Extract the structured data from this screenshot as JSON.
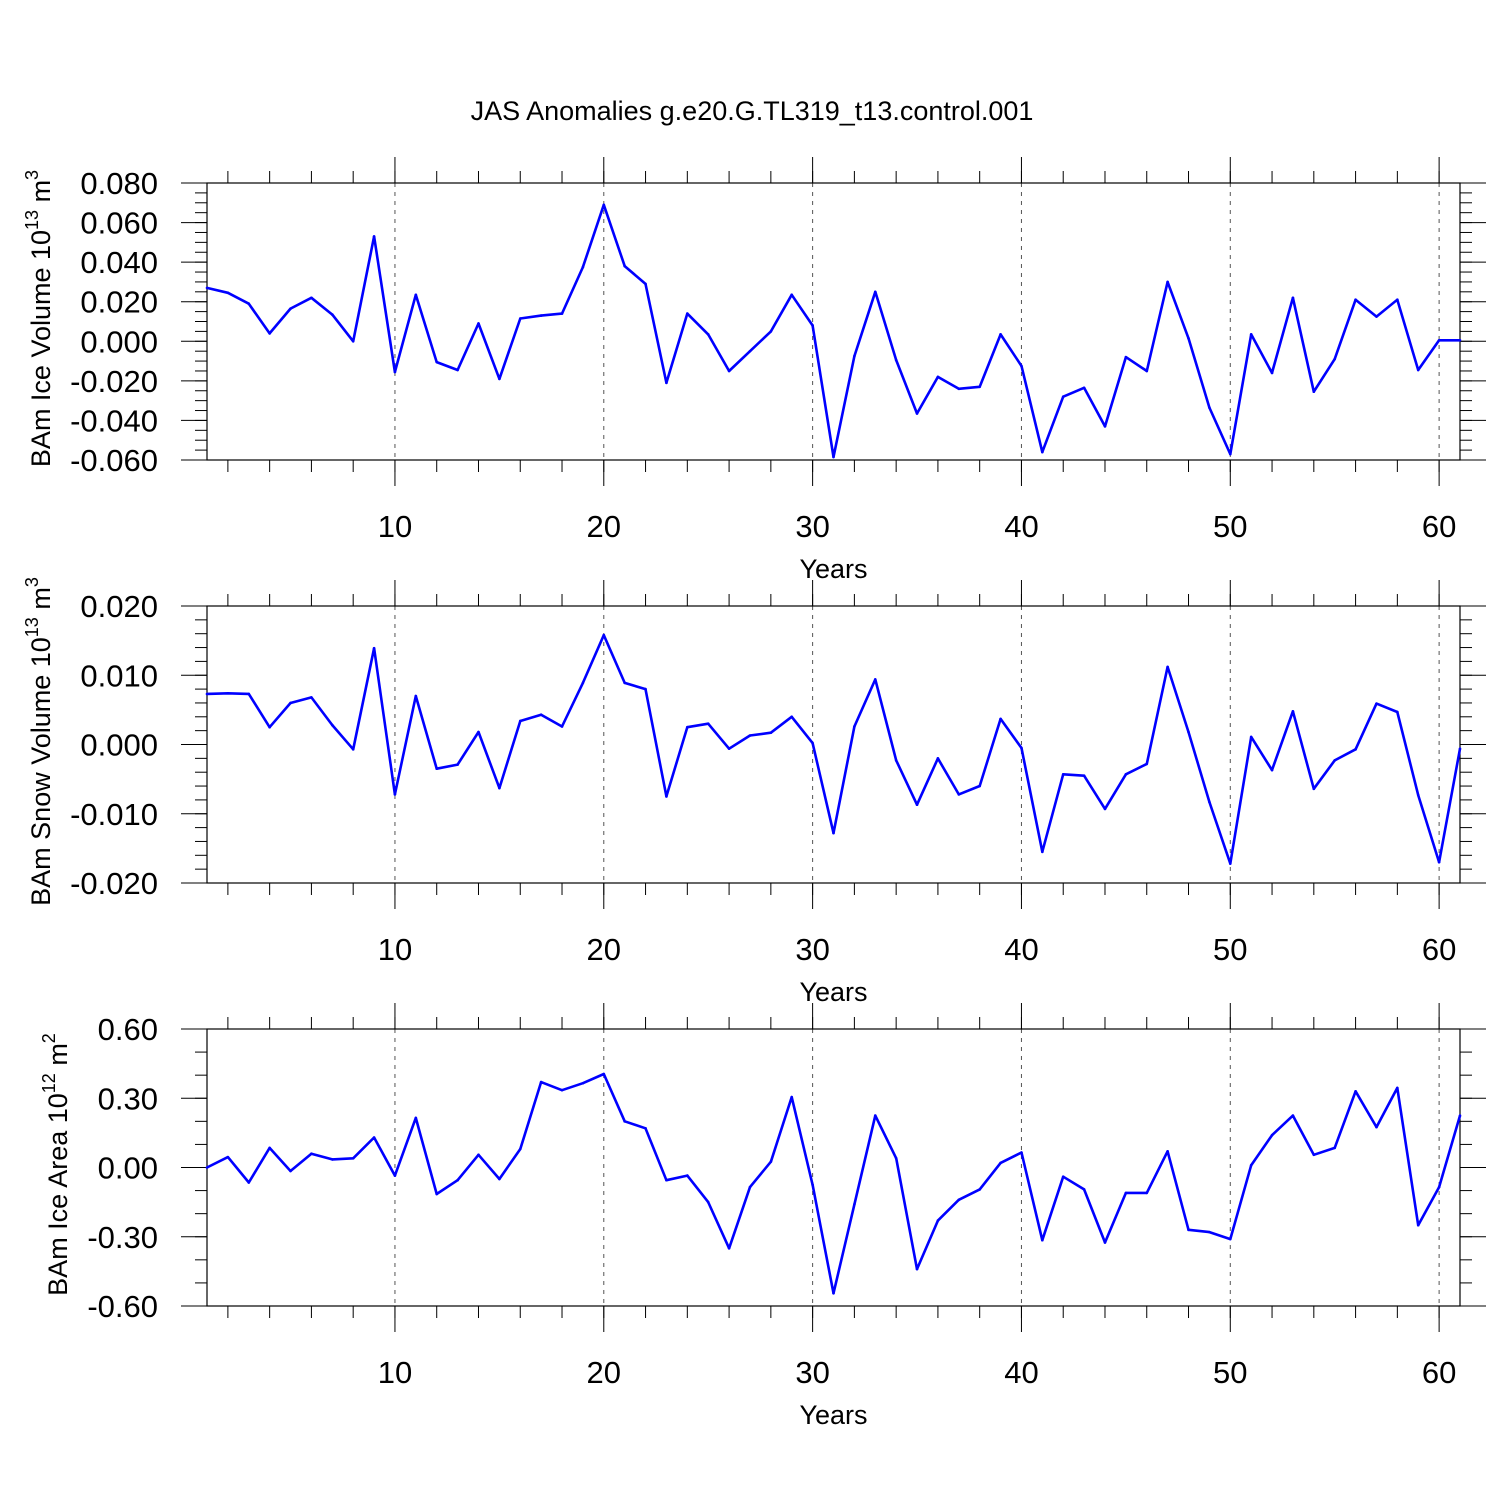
{
  "title": "JAS Anomalies g.e20.G.TL319_t13.control.001",
  "line_color": "#0000ff",
  "chart_data": [
    {
      "type": "line",
      "ylabel": "BAm Ice Volume 10",
      "ylabel_exp": "13",
      "ylabel_unit": " m",
      "ylabel_unit_exp": "3",
      "xlabel": "Years",
      "xlim": [
        1,
        61
      ],
      "ylim": [
        -0.06,
        0.08
      ],
      "yticks": [
        -0.06,
        -0.04,
        -0.02,
        0.0,
        0.02,
        0.04,
        0.06,
        0.08
      ],
      "ytick_labels": [
        "-0.060",
        "-0.040",
        "-0.020",
        "0.000",
        "0.020",
        "0.040",
        "0.060",
        "0.080"
      ],
      "yminor": 0.005,
      "xticks": [
        10,
        20,
        30,
        40,
        50,
        60
      ],
      "xtick_labels": [
        "10",
        "20",
        "30",
        "40",
        "50",
        "60"
      ],
      "grid_x": [
        10,
        20,
        30,
        40,
        50,
        60
      ],
      "x": [
        1,
        2,
        3,
        4,
        5,
        6,
        7,
        8,
        9,
        10,
        11,
        12,
        13,
        14,
        15,
        16,
        17,
        18,
        19,
        20,
        21,
        22,
        23,
        24,
        25,
        26,
        27,
        28,
        29,
        30,
        31,
        32,
        33,
        34,
        35,
        36,
        37,
        38,
        39,
        40,
        41,
        42,
        43,
        44,
        45,
        46,
        47,
        48,
        49,
        50,
        51,
        52,
        53,
        54,
        55,
        56,
        57,
        58,
        59,
        60,
        61
      ],
      "y": [
        0.027,
        0.0245,
        0.019,
        0.004,
        0.0165,
        0.022,
        0.0135,
        0.0,
        0.053,
        -0.0155,
        0.0235,
        -0.0105,
        -0.0145,
        0.009,
        -0.019,
        0.0115,
        0.013,
        0.014,
        0.0375,
        0.069,
        0.038,
        0.029,
        -0.021,
        0.014,
        0.0035,
        -0.015,
        -0.005,
        0.005,
        0.0235,
        0.008,
        -0.0585,
        -0.0075,
        0.025,
        -0.0095,
        -0.0365,
        -0.018,
        -0.024,
        -0.023,
        0.0035,
        -0.0125,
        -0.056,
        -0.028,
        -0.0235,
        -0.043,
        -0.008,
        -0.015,
        0.03,
        0.0015,
        -0.0335,
        -0.057,
        0.0035,
        -0.016,
        0.022,
        -0.0255,
        -0.009,
        0.021,
        0.0125,
        0.021,
        -0.0145,
        0.0005,
        0.0005
      ]
    },
    {
      "type": "line",
      "ylabel": "BAm Snow Volume 10",
      "ylabel_exp": "13",
      "ylabel_unit": " m",
      "ylabel_unit_exp": "3",
      "xlabel": "Years",
      "xlim": [
        1,
        61
      ],
      "ylim": [
        -0.02,
        0.02
      ],
      "yticks": [
        -0.02,
        -0.01,
        0.0,
        0.01,
        0.02
      ],
      "ytick_labels": [
        "-0.020",
        "-0.010",
        "0.000",
        "0.010",
        "0.020"
      ],
      "yminor": 0.002,
      "xticks": [
        10,
        20,
        30,
        40,
        50,
        60
      ],
      "xtick_labels": [
        "10",
        "20",
        "30",
        "40",
        "50",
        "60"
      ],
      "grid_x": [
        10,
        20,
        30,
        40,
        50,
        60
      ],
      "x": [
        1,
        2,
        3,
        4,
        5,
        6,
        7,
        8,
        9,
        10,
        11,
        12,
        13,
        14,
        15,
        16,
        17,
        18,
        19,
        20,
        21,
        22,
        23,
        24,
        25,
        26,
        27,
        28,
        29,
        30,
        31,
        32,
        33,
        34,
        35,
        36,
        37,
        38,
        39,
        40,
        41,
        42,
        43,
        44,
        45,
        46,
        47,
        48,
        49,
        50,
        51,
        52,
        53,
        54,
        55,
        56,
        57,
        58,
        59,
        60,
        61
      ],
      "y": [
        0.0073,
        0.0074,
        0.0073,
        0.0025,
        0.006,
        0.0068,
        0.0028,
        -0.0007,
        0.0139,
        -0.0072,
        0.007,
        -0.0035,
        -0.0029,
        0.0018,
        -0.0063,
        0.0034,
        0.0043,
        0.0026,
        0.0089,
        0.0158,
        0.0089,
        0.008,
        -0.0075,
        0.0025,
        0.003,
        -0.0006,
        0.0013,
        0.0017,
        0.004,
        0.0002,
        -0.0128,
        0.0026,
        0.0094,
        -0.0023,
        -0.0087,
        -0.002,
        -0.0072,
        -0.006,
        0.0037,
        -0.0005,
        -0.0155,
        -0.0043,
        -0.0045,
        -0.0093,
        -0.0043,
        -0.0028,
        0.0112,
        0.0018,
        -0.0083,
        -0.0172,
        0.0011,
        -0.0037,
        0.0048,
        -0.0064,
        -0.0023,
        -0.0007,
        0.0059,
        0.0047,
        -0.0073,
        -0.017,
        -0.0006
      ]
    },
    {
      "type": "line",
      "ylabel": "BAm Ice Area 10",
      "ylabel_exp": "12",
      "ylabel_unit": " m",
      "ylabel_unit_exp": "2",
      "xlabel": "Years",
      "xlim": [
        1,
        61
      ],
      "ylim": [
        -0.6,
        0.6
      ],
      "yticks": [
        -0.6,
        -0.3,
        0.0,
        0.3,
        0.6
      ],
      "ytick_labels": [
        "-0.60",
        "-0.30",
        "0.00",
        "0.30",
        "0.60"
      ],
      "yminor": 0.1,
      "xticks": [
        10,
        20,
        30,
        40,
        50,
        60
      ],
      "xtick_labels": [
        "10",
        "20",
        "30",
        "40",
        "50",
        "60"
      ],
      "grid_x": [
        10,
        20,
        30,
        40,
        50,
        60
      ],
      "x": [
        1,
        2,
        3,
        4,
        5,
        6,
        7,
        8,
        9,
        10,
        11,
        12,
        13,
        14,
        15,
        16,
        17,
        18,
        19,
        20,
        21,
        22,
        23,
        24,
        25,
        26,
        27,
        28,
        29,
        30,
        31,
        32,
        33,
        34,
        35,
        36,
        37,
        38,
        39,
        40,
        41,
        42,
        43,
        44,
        45,
        46,
        47,
        48,
        49,
        50,
        51,
        52,
        53,
        54,
        55,
        56,
        57,
        58,
        59,
        60,
        61
      ],
      "y": [
        0.0,
        0.045,
        -0.065,
        0.085,
        -0.015,
        0.06,
        0.035,
        0.04,
        0.13,
        -0.035,
        0.215,
        -0.115,
        -0.055,
        0.055,
        -0.05,
        0.08,
        0.37,
        0.335,
        0.365,
        0.405,
        0.2,
        0.17,
        -0.055,
        -0.035,
        -0.15,
        -0.35,
        -0.085,
        0.025,
        0.305,
        -0.075,
        -0.545,
        -0.16,
        0.225,
        0.04,
        -0.44,
        -0.23,
        -0.14,
        -0.095,
        0.02,
        0.065,
        -0.315,
        -0.04,
        -0.095,
        -0.325,
        -0.11,
        -0.11,
        0.07,
        -0.27,
        -0.28,
        -0.31,
        0.01,
        0.14,
        0.225,
        0.055,
        0.085,
        0.33,
        0.175,
        0.345,
        -0.25,
        -0.085,
        0.225
      ]
    }
  ]
}
